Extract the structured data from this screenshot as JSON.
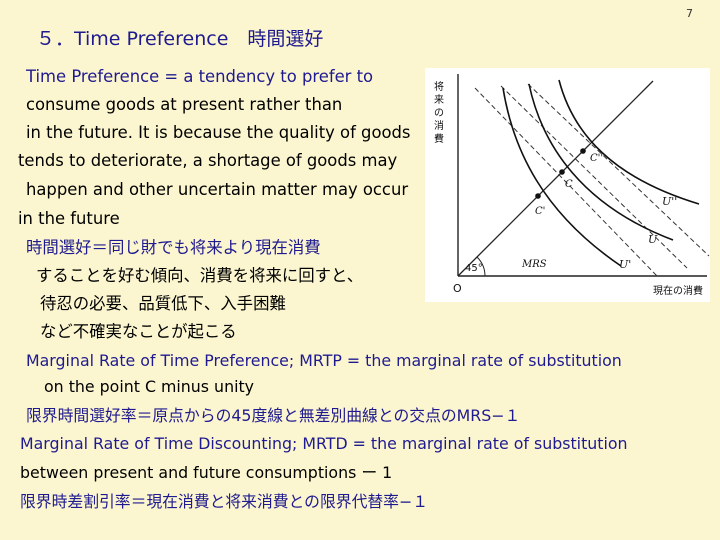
{
  "page_number": "7",
  "title": "５．Time Preference　時間選好",
  "definition_lines": [
    "Time Preference  = a tendency to prefer to",
    "consume goods at present rather than",
    "in the future. It is because the quality of goods",
    "tends to deteriorate, a shortage of goods may",
    "happen and other uncertain matter may occur",
    "in the future"
  ],
  "japanese_lines": [
    "時間選好＝同じ財でも将来より現在消費",
    "することを好む傾向、消費を将来に回すと、",
    "待忍の必要、品質低下、入手困難",
    "など不確実なことが起こる"
  ],
  "mrtp_lines": [
    "Marginal Rate of Time Preference; MRTP = the marginal rate of substitution",
    "on the point  C minus unity"
  ],
  "mrtp_japanese": "限界時間選好率＝原点からの45度線と無差別曲線との交点のMRS−１",
  "mrtd_lines": [
    "Marginal Rate of Time Discounting; MRTD = the marginal rate of substitution",
    "between present and future consumptions  ー  1"
  ],
  "mrtd_japanese": "限界時差割引率＝現在消費と将来消費との限界代替率−１",
  "figure": {
    "y_axis_label": [
      "将",
      "来",
      "の",
      "消",
      "費"
    ],
    "x_axis_label": "現在の消費",
    "origin_label": "O",
    "angle_label": "45°",
    "mrs_label": "MRS",
    "point_labels": [
      "C''",
      "C",
      "C'"
    ],
    "curve_labels": [
      "U''",
      "U",
      "U'"
    ]
  }
}
